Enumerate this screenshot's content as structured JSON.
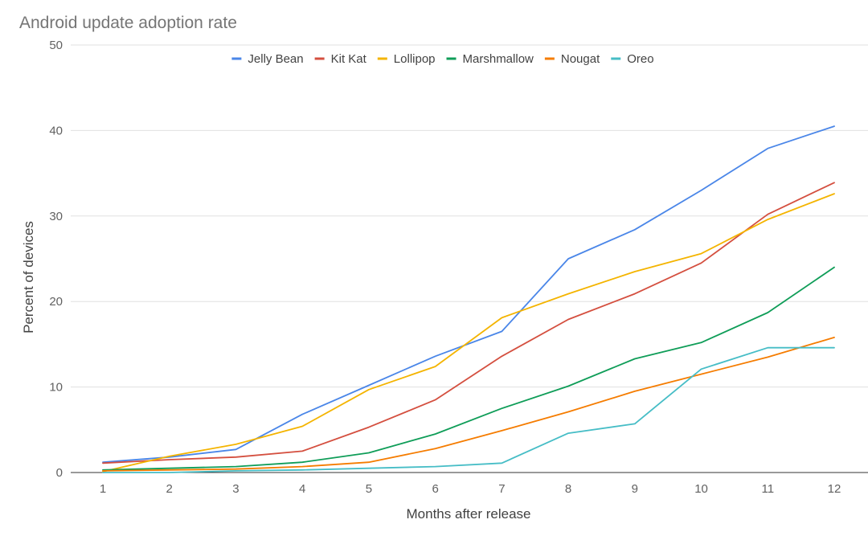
{
  "chart_data": {
    "type": "line",
    "title": "Android update adoption rate",
    "xlabel": "Months after release",
    "ylabel": "Percent of devices",
    "x": [
      1,
      2,
      3,
      4,
      5,
      6,
      7,
      8,
      9,
      10,
      11,
      12
    ],
    "ylim": [
      0,
      50
    ],
    "yticks": [
      0,
      10,
      20,
      30,
      40,
      50
    ],
    "grid": true,
    "legend": "top",
    "series": [
      {
        "name": "Jelly Bean",
        "color": "#4a86e8",
        "values": [
          1.2,
          1.8,
          2.7,
          6.8,
          10.2,
          13.6,
          16.5,
          25.0,
          28.4,
          33.0,
          37.9,
          40.5
        ]
      },
      {
        "name": "Kit Kat",
        "color": "#d44f3f",
        "values": [
          1.1,
          1.5,
          1.8,
          2.5,
          5.3,
          8.5,
          13.6,
          17.9,
          20.9,
          24.5,
          30.2,
          33.9
        ]
      },
      {
        "name": "Lollipop",
        "color": "#f4b400",
        "values": [
          0.1,
          1.9,
          3.3,
          5.4,
          9.7,
          12.4,
          18.1,
          20.9,
          23.5,
          25.6,
          29.6,
          32.6
        ]
      },
      {
        "name": "Marshmallow",
        "color": "#0f9d58",
        "values": [
          0.3,
          0.5,
          0.7,
          1.2,
          2.3,
          4.5,
          7.5,
          10.1,
          13.3,
          15.2,
          18.7,
          24.0
        ]
      },
      {
        "name": "Nougat",
        "color": "#f57c00",
        "values": [
          0.2,
          0.3,
          0.4,
          0.7,
          1.2,
          2.8,
          4.9,
          7.1,
          9.5,
          11.5,
          13.5,
          15.8
        ]
      },
      {
        "name": "Oreo",
        "color": "#46bdc6",
        "values": [
          0.0,
          0.0,
          0.2,
          0.3,
          0.5,
          0.7,
          1.1,
          4.6,
          5.7,
          12.1,
          14.6,
          14.6
        ]
      }
    ]
  }
}
